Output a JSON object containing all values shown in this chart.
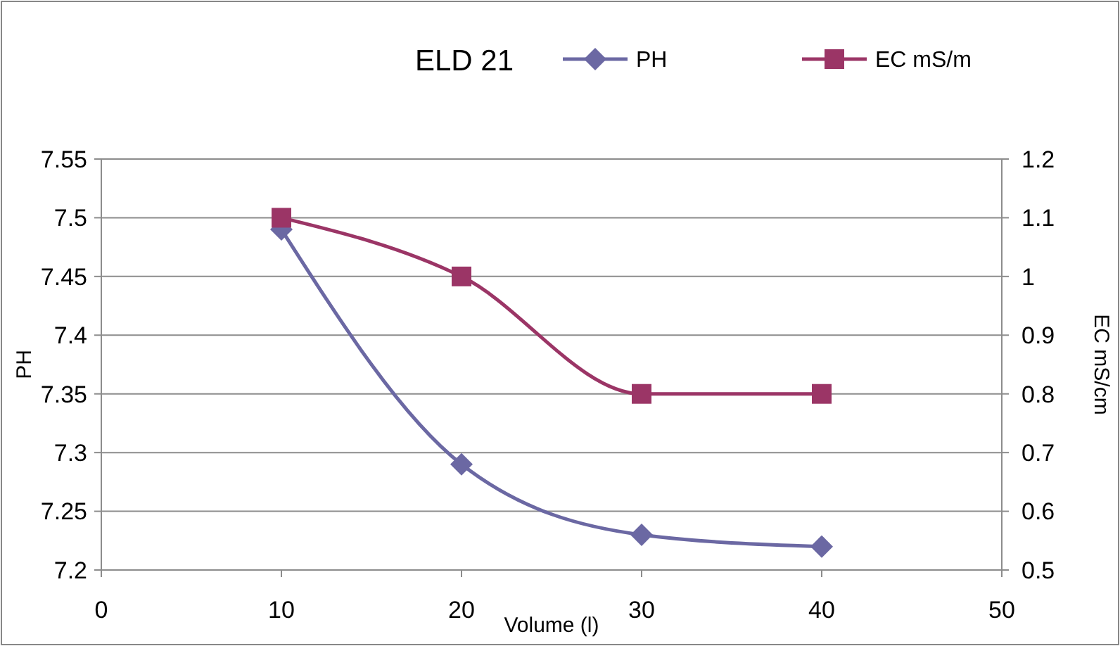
{
  "chart_data": {
    "type": "line",
    "title": "ELD 21",
    "xlabel": "Volume (l)",
    "ylabel": "PH",
    "y2label": "EC mS/cm",
    "x": [
      10,
      20,
      30,
      40
    ],
    "series": [
      {
        "name": "PH",
        "color": "#6b68a3",
        "values": [
          7.49,
          7.29,
          7.23,
          7.22
        ],
        "marker": "diamond"
      },
      {
        "name": "EC mS/m",
        "color": "#9b3566",
        "values": [
          1.1,
          1.0,
          0.8,
          0.8
        ],
        "axis": "y2",
        "marker": "square"
      }
    ],
    "xlim": [
      0,
      50
    ],
    "xticks": [
      0,
      10,
      20,
      30,
      40,
      50
    ],
    "ylim": [
      7.2,
      7.55
    ],
    "yticks": [
      7.2,
      7.25,
      7.3,
      7.35,
      7.4,
      7.45,
      7.5,
      7.55
    ],
    "y2lim": [
      0.5,
      1.2
    ],
    "y2ticks": [
      0.5,
      0.6,
      0.7,
      0.8,
      0.9,
      1,
      1.1,
      1.2
    ],
    "grid": "y",
    "legend": "top",
    "line_style": "solid"
  }
}
